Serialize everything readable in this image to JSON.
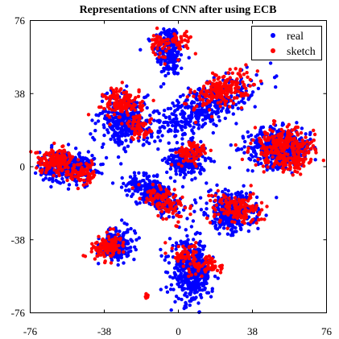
{
  "chart_data": {
    "type": "scatter",
    "title": "Representations of CNN after using ECB",
    "xlabel": "",
    "ylabel": "",
    "xlim": [
      -76,
      76
    ],
    "ylim": [
      -76,
      76
    ],
    "xticks": [
      "-76",
      "-38",
      "0",
      "38",
      "76"
    ],
    "yticks": [
      "76",
      "38",
      "0",
      "-38",
      "-76"
    ],
    "grid": false,
    "legend_position": "top-right",
    "series": [
      {
        "name": "real",
        "color": "#0000ff",
        "clusters": [
          {
            "cx": -5,
            "cy": 60,
            "sx": 3.5,
            "sy": 7,
            "rot": 10,
            "n": 220
          },
          {
            "cx": 12,
            "cy": 30,
            "sx": 14,
            "sy": 5,
            "rot": 25,
            "n": 420
          },
          {
            "cx": -28,
            "cy": 24,
            "sx": 6,
            "sy": 7,
            "rot": -25,
            "n": 320
          },
          {
            "cx": 52,
            "cy": 10,
            "sx": 8,
            "sy": 5,
            "rot": 0,
            "n": 480
          },
          {
            "cx": 4,
            "cy": 3,
            "sx": 5,
            "sy": 4,
            "rot": 0,
            "n": 220
          },
          {
            "cx": -57,
            "cy": 0,
            "sx": 7,
            "sy": 4,
            "rot": 0,
            "n": 340
          },
          {
            "cx": -12,
            "cy": -14,
            "sx": 8,
            "sy": 3.5,
            "rot": -30,
            "n": 300
          },
          {
            "cx": 27,
            "cy": -23,
            "sx": 6,
            "sy": 5,
            "rot": -10,
            "n": 360
          },
          {
            "cx": -32,
            "cy": -41,
            "sx": 5,
            "sy": 3.5,
            "rot": 30,
            "n": 220
          },
          {
            "cx": 7,
            "cy": -55,
            "sx": 5,
            "sy": 8,
            "rot": 5,
            "n": 420
          }
        ]
      },
      {
        "name": "sketch",
        "color": "#ff0000",
        "clusters": [
          {
            "cx": -10,
            "cy": 64,
            "sx": 3,
            "sy": 3,
            "rot": 0,
            "n": 40
          },
          {
            "cx": 1,
            "cy": 65,
            "sx": 3,
            "sy": 3,
            "rot": 0,
            "n": 40
          },
          {
            "cx": 22,
            "cy": 40,
            "sx": 8,
            "sy": 4,
            "rot": 25,
            "n": 200
          },
          {
            "cx": -28,
            "cy": 33,
            "sx": 5,
            "sy": 4,
            "rot": 0,
            "n": 140
          },
          {
            "cx": -20,
            "cy": 20,
            "sx": 3,
            "sy": 3,
            "rot": 0,
            "n": 60
          },
          {
            "cx": 54,
            "cy": 10,
            "sx": 8,
            "sy": 5,
            "rot": 0,
            "n": 260
          },
          {
            "cx": 59,
            "cy": 2,
            "sx": 4,
            "sy": 3,
            "rot": 0,
            "n": 50
          },
          {
            "cx": 7,
            "cy": 7,
            "sx": 4,
            "sy": 3,
            "rot": 0,
            "n": 80
          },
          {
            "cx": -63,
            "cy": 3,
            "sx": 5,
            "sy": 3,
            "rot": 0,
            "n": 160
          },
          {
            "cx": -48,
            "cy": -3,
            "sx": 4,
            "sy": 3,
            "rot": 0,
            "n": 70
          },
          {
            "cx": -7,
            "cy": -18,
            "sx": 6,
            "sy": 3,
            "rot": -30,
            "n": 120
          },
          {
            "cx": 30,
            "cy": -22,
            "sx": 7,
            "sy": 4,
            "rot": -10,
            "n": 150
          },
          {
            "cx": -37,
            "cy": -42,
            "sx": 4,
            "sy": 3,
            "rot": 20,
            "n": 110
          },
          {
            "cx": 15,
            "cy": -51,
            "sx": 4,
            "sy": 3,
            "rot": 0,
            "n": 70
          },
          {
            "cx": 3,
            "cy": -46,
            "sx": 3,
            "sy": 3,
            "rot": 0,
            "n": 50
          },
          {
            "cx": -16,
            "cy": -67,
            "sx": 0.8,
            "sy": 1.5,
            "rot": 0,
            "n": 10
          }
        ]
      }
    ]
  }
}
